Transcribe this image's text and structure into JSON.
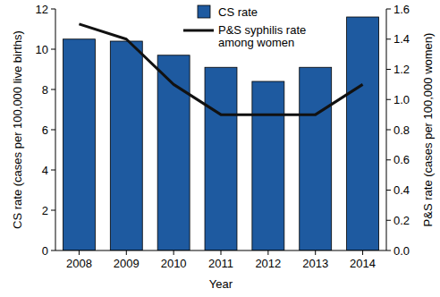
{
  "chart_data": {
    "type": "bar",
    "x_label": "Year",
    "y_label": "CS rate (cases per 100,000 live births)",
    "y2_label": "P&S rate (cases per 100,000 women)",
    "categories": [
      "2008",
      "2009",
      "2010",
      "2011",
      "2012",
      "2013",
      "2014"
    ],
    "series": [
      {
        "name": "CS rate",
        "type": "bar",
        "color": "#1e5aa0",
        "values": [
          10.5,
          10.4,
          9.7,
          9.1,
          8.4,
          9.1,
          11.6
        ]
      },
      {
        "name": "P&S syphilis rate among women",
        "type": "line",
        "axis": "y2",
        "color": "#111111",
        "values": [
          1.5,
          1.4,
          1.1,
          0.9,
          0.9,
          0.9,
          1.1
        ]
      }
    ],
    "ylim": [
      0,
      12
    ],
    "yticks": [
      0,
      2,
      4,
      6,
      8,
      10,
      12
    ],
    "y2lim": [
      0,
      1.6
    ],
    "y2ticks": [
      {
        "value": 0,
        "label": "0.0"
      },
      {
        "value": 0.2,
        "label": "0.2"
      },
      {
        "value": 0.4,
        "label": "0.4"
      },
      {
        "value": 0.6,
        "label": "0.6"
      },
      {
        "value": 0.8,
        "label": "0.8"
      },
      {
        "value": 1.0,
        "label": "1.0"
      },
      {
        "value": 1.2,
        "label": "1.2"
      },
      {
        "value": 1.4,
        "label": "1.4"
      },
      {
        "value": 1.6,
        "label": "1.6"
      }
    ],
    "legend": "top",
    "grid": false
  }
}
